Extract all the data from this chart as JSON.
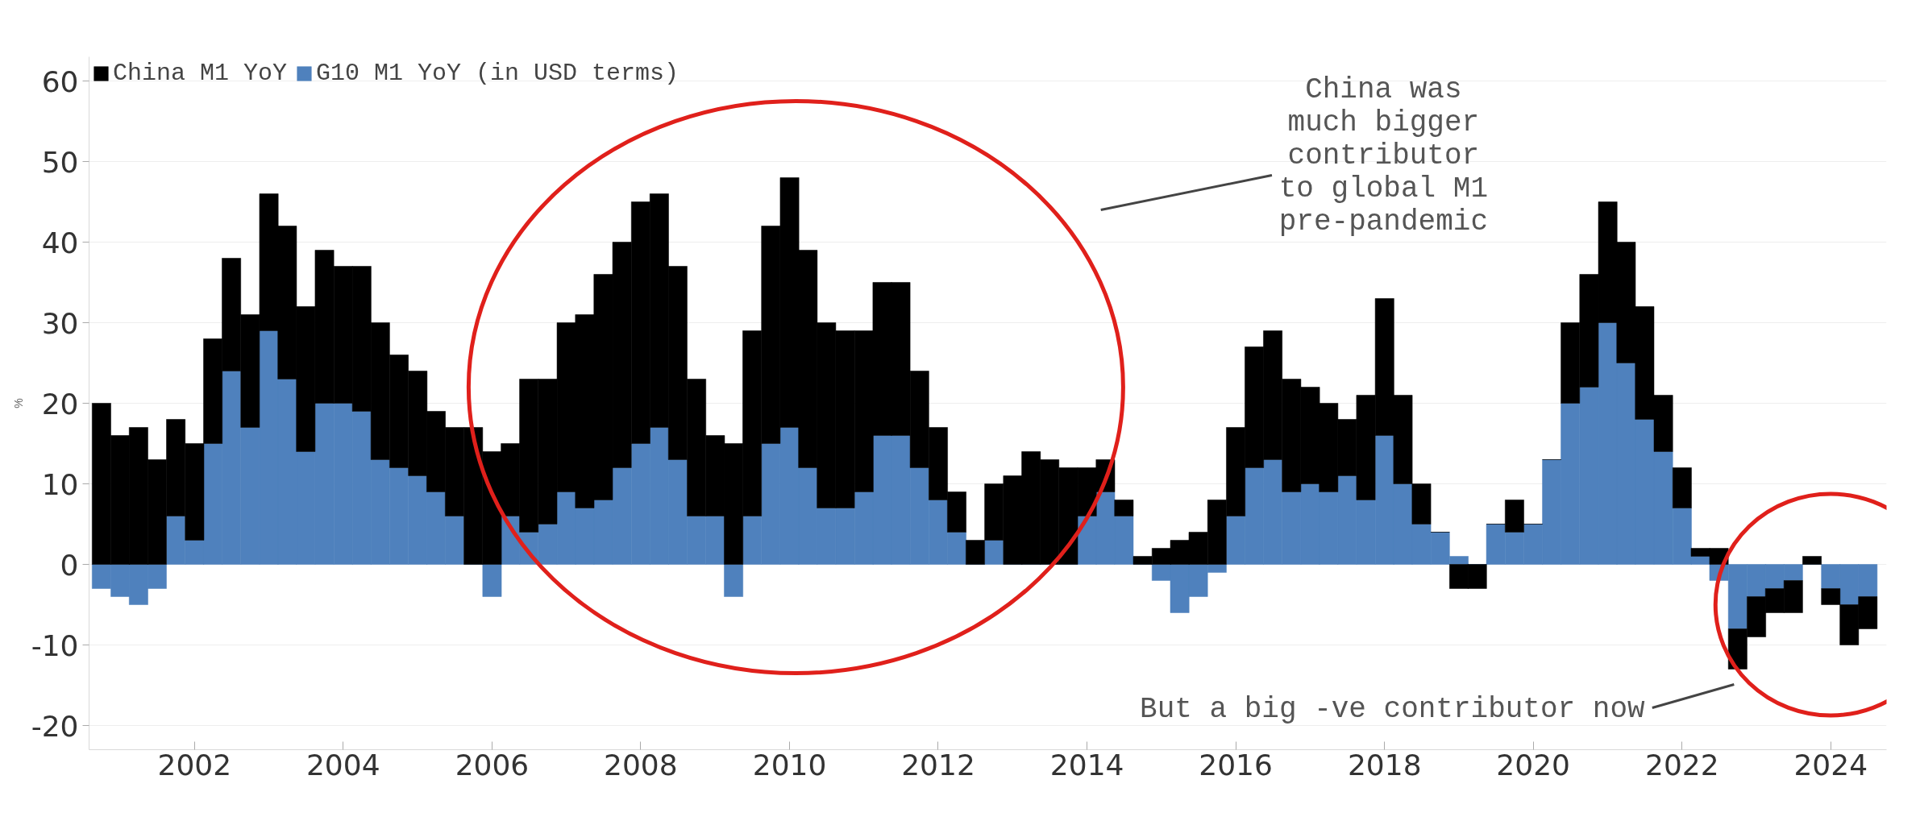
{
  "chart_data": {
    "type": "bar",
    "stacked": true,
    "ylabel": "%",
    "x": [
      "2000-10",
      "2001-01",
      "2001-04",
      "2001-07",
      "2001-10",
      "2002-01",
      "2002-04",
      "2002-07",
      "2002-10",
      "2003-01",
      "2003-04",
      "2003-07",
      "2003-10",
      "2004-01",
      "2004-04",
      "2004-07",
      "2004-10",
      "2005-01",
      "2005-04",
      "2005-07",
      "2005-10",
      "2006-01",
      "2006-04",
      "2006-07",
      "2006-10",
      "2007-01",
      "2007-04",
      "2007-07",
      "2007-10",
      "2008-01",
      "2008-04",
      "2008-07",
      "2008-10",
      "2009-01",
      "2009-04",
      "2009-07",
      "2009-10",
      "2010-01",
      "2010-04",
      "2010-07",
      "2010-10",
      "2011-01",
      "2011-04",
      "2011-07",
      "2011-10",
      "2012-01",
      "2012-04",
      "2012-07",
      "2012-10",
      "2013-01",
      "2013-04",
      "2013-07",
      "2013-10",
      "2014-01",
      "2014-04",
      "2014-07",
      "2014-10",
      "2015-01",
      "2015-04",
      "2015-07",
      "2015-10",
      "2016-01",
      "2016-04",
      "2016-07",
      "2016-10",
      "2017-01",
      "2017-04",
      "2017-07",
      "2017-10",
      "2018-01",
      "2018-04",
      "2018-07",
      "2018-10",
      "2019-01",
      "2019-04",
      "2019-07",
      "2019-10",
      "2020-01",
      "2020-04",
      "2020-07",
      "2020-10",
      "2021-01",
      "2021-04",
      "2021-07",
      "2021-10",
      "2022-01",
      "2022-04",
      "2022-07",
      "2022-10",
      "2023-01",
      "2023-04",
      "2023-07",
      "2023-10",
      "2024-01",
      "2024-04",
      "2024-07"
    ],
    "series": [
      {
        "name": "G10 M1 YoY (in USD terms)",
        "color": "#4f81bd",
        "values": [
          -3,
          -4,
          -5,
          -3,
          6,
          3,
          15,
          24,
          17,
          29,
          23,
          14,
          20,
          20,
          19,
          13,
          12,
          11,
          9,
          6,
          0,
          -4,
          6,
          4,
          5,
          9,
          7,
          8,
          12,
          15,
          17,
          13,
          6,
          6,
          -4,
          6,
          15,
          17,
          12,
          7,
          7,
          9,
          16,
          16,
          12,
          8,
          4,
          0,
          3,
          0,
          0,
          0,
          0,
          6,
          9,
          6,
          0,
          -2,
          -6,
          -4,
          -1,
          6,
          12,
          13,
          9,
          10,
          9,
          11,
          8,
          16,
          10,
          5,
          4,
          1,
          0,
          5,
          4,
          5,
          13,
          20,
          22,
          30,
          25,
          18,
          14,
          7,
          1,
          -2,
          -8,
          -4,
          -3,
          -2,
          0,
          -3,
          -5,
          -4
        ]
      },
      {
        "name": "China M1 YoY",
        "color": "#000000",
        "values": [
          20,
          16,
          17,
          13,
          12,
          12,
          13,
          14,
          14,
          17,
          19,
          18,
          19,
          17,
          18,
          17,
          14,
          13,
          10,
          11,
          17,
          14,
          9,
          19,
          18,
          21,
          24,
          28,
          28,
          30,
          29,
          24,
          17,
          10,
          15,
          23,
          27,
          31,
          27,
          23,
          22,
          20,
          19,
          19,
          12,
          9,
          5,
          3,
          7,
          11,
          14,
          13,
          12,
          6,
          4,
          2,
          1,
          2,
          3,
          4,
          8,
          11,
          15,
          16,
          14,
          12,
          11,
          7,
          13,
          17,
          11,
          5,
          0,
          -3,
          -3,
          0,
          4,
          0,
          0,
          10,
          14,
          15,
          15,
          14,
          7,
          5,
          1,
          2,
          -5,
          -5,
          -3,
          -4,
          1,
          -2,
          -5,
          -4
        ]
      }
    ],
    "xlim": [
      "2000-08",
      "2024-10"
    ],
    "xticks": [
      "2002",
      "2004",
      "2006",
      "2008",
      "2010",
      "2012",
      "2014",
      "2016",
      "2018",
      "2020",
      "2022",
      "2024"
    ],
    "ylim": [
      -23,
      63
    ],
    "yticks": [
      -20,
      -10,
      0,
      10,
      20,
      30,
      40,
      50,
      60
    ],
    "grid": "y",
    "legend": "top left",
    "annotations": [
      "China was\nmuch bigger\ncontributor\nto global M1\npre-pandemic",
      "But a big -ve contributor now"
    ]
  }
}
